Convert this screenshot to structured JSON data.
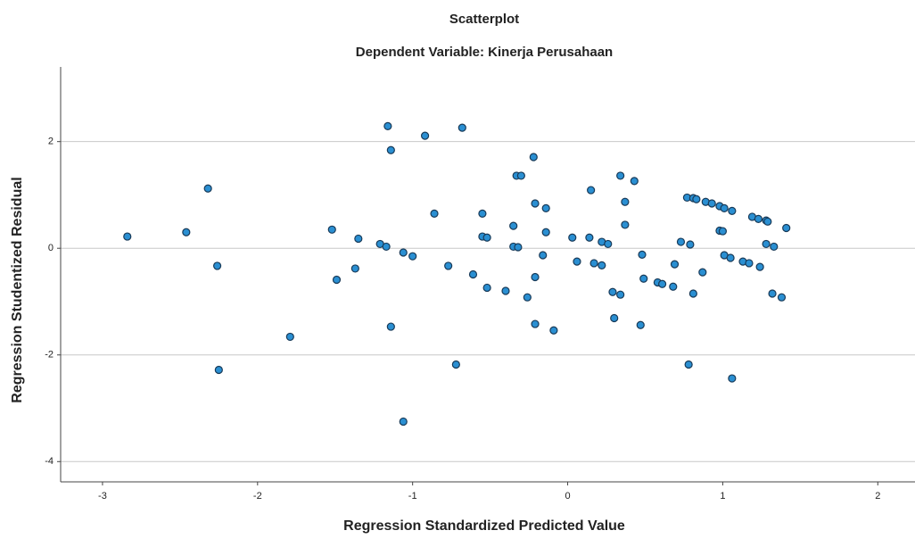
{
  "chart_data": {
    "type": "scatter",
    "title": "Scatterplot",
    "subtitle": "Dependent Variable: Kinerja Perusahaan",
    "x_label": "Regression Standardized Predicted Value",
    "y_label": "Regression Studentized Residual",
    "xlim": [
      -3.27,
      2.24
    ],
    "ylim": [
      -4.38,
      3.4
    ],
    "xticks": [
      -3,
      -2,
      -1,
      0,
      1,
      2
    ],
    "yticks": [
      -4,
      -2,
      0,
      2
    ],
    "grid": true,
    "marker_color": "#2a8fd2",
    "marker_edge": "#183a58",
    "x": [
      -2.84,
      -2.46,
      -2.32,
      -2.26,
      -2.25,
      -1.79,
      -1.52,
      -1.49,
      -1.35,
      -1.37,
      -1.21,
      -1.17,
      -1.16,
      -1.14,
      -1.14,
      -1.06,
      -1.0,
      -1.06,
      -0.92,
      -0.86,
      -0.77,
      -0.72,
      -0.68,
      -0.61,
      -0.55,
      -0.55,
      -0.52,
      -0.52,
      -0.4,
      -0.35,
      -0.33,
      -0.3,
      -0.35,
      -0.32,
      -0.26,
      -0.22,
      -0.21,
      -0.21,
      -0.21,
      -0.14,
      -0.14,
      -0.16,
      -0.09,
      0.03,
      0.06,
      0.15,
      0.14,
      0.17,
      0.22,
      0.26,
      0.22,
      0.29,
      0.3,
      0.34,
      0.37,
      0.37,
      0.34,
      0.43,
      0.48,
      0.49,
      0.47,
      0.58,
      0.61,
      0.68,
      0.69,
      0.73,
      0.78,
      0.77,
      0.79,
      0.81,
      0.83,
      0.81,
      0.87,
      0.89,
      0.93,
      0.98,
      0.98,
      1.0,
      1.01,
      1.01,
      1.06,
      1.05,
      1.06,
      1.13,
      1.17,
      1.19,
      1.23,
      1.24,
      1.28,
      1.29,
      1.28,
      1.33,
      1.32,
      1.38,
      1.41
    ],
    "y": [
      0.22,
      0.3,
      1.12,
      -0.33,
      -2.28,
      -1.66,
      0.35,
      -0.59,
      0.18,
      -0.38,
      0.08,
      0.03,
      2.29,
      1.84,
      -1.47,
      -0.08,
      -0.15,
      -3.25,
      2.11,
      0.65,
      -0.33,
      -2.18,
      2.26,
      -0.49,
      0.65,
      0.22,
      0.2,
      -0.74,
      -0.8,
      0.42,
      1.36,
      1.36,
      0.03,
      0.02,
      -0.92,
      1.71,
      0.84,
      -0.54,
      -1.42,
      0.75,
      0.3,
      -0.13,
      -1.54,
      0.2,
      -0.25,
      1.09,
      0.2,
      -0.28,
      0.12,
      0.08,
      -0.32,
      -0.82,
      -1.31,
      1.36,
      0.87,
      0.44,
      -0.87,
      1.26,
      -0.12,
      -0.57,
      -1.44,
      -0.64,
      -0.67,
      -0.72,
      -0.3,
      0.12,
      -2.18,
      0.95,
      0.07,
      0.94,
      0.92,
      -0.85,
      -0.45,
      0.87,
      0.84,
      0.79,
      0.33,
      0.32,
      0.75,
      -0.13,
      0.7,
      -0.18,
      -2.44,
      -0.25,
      -0.28,
      0.59,
      0.55,
      -0.35,
      0.52,
      0.5,
      0.08,
      0.03,
      -0.85,
      -0.92,
      0.38
    ]
  }
}
